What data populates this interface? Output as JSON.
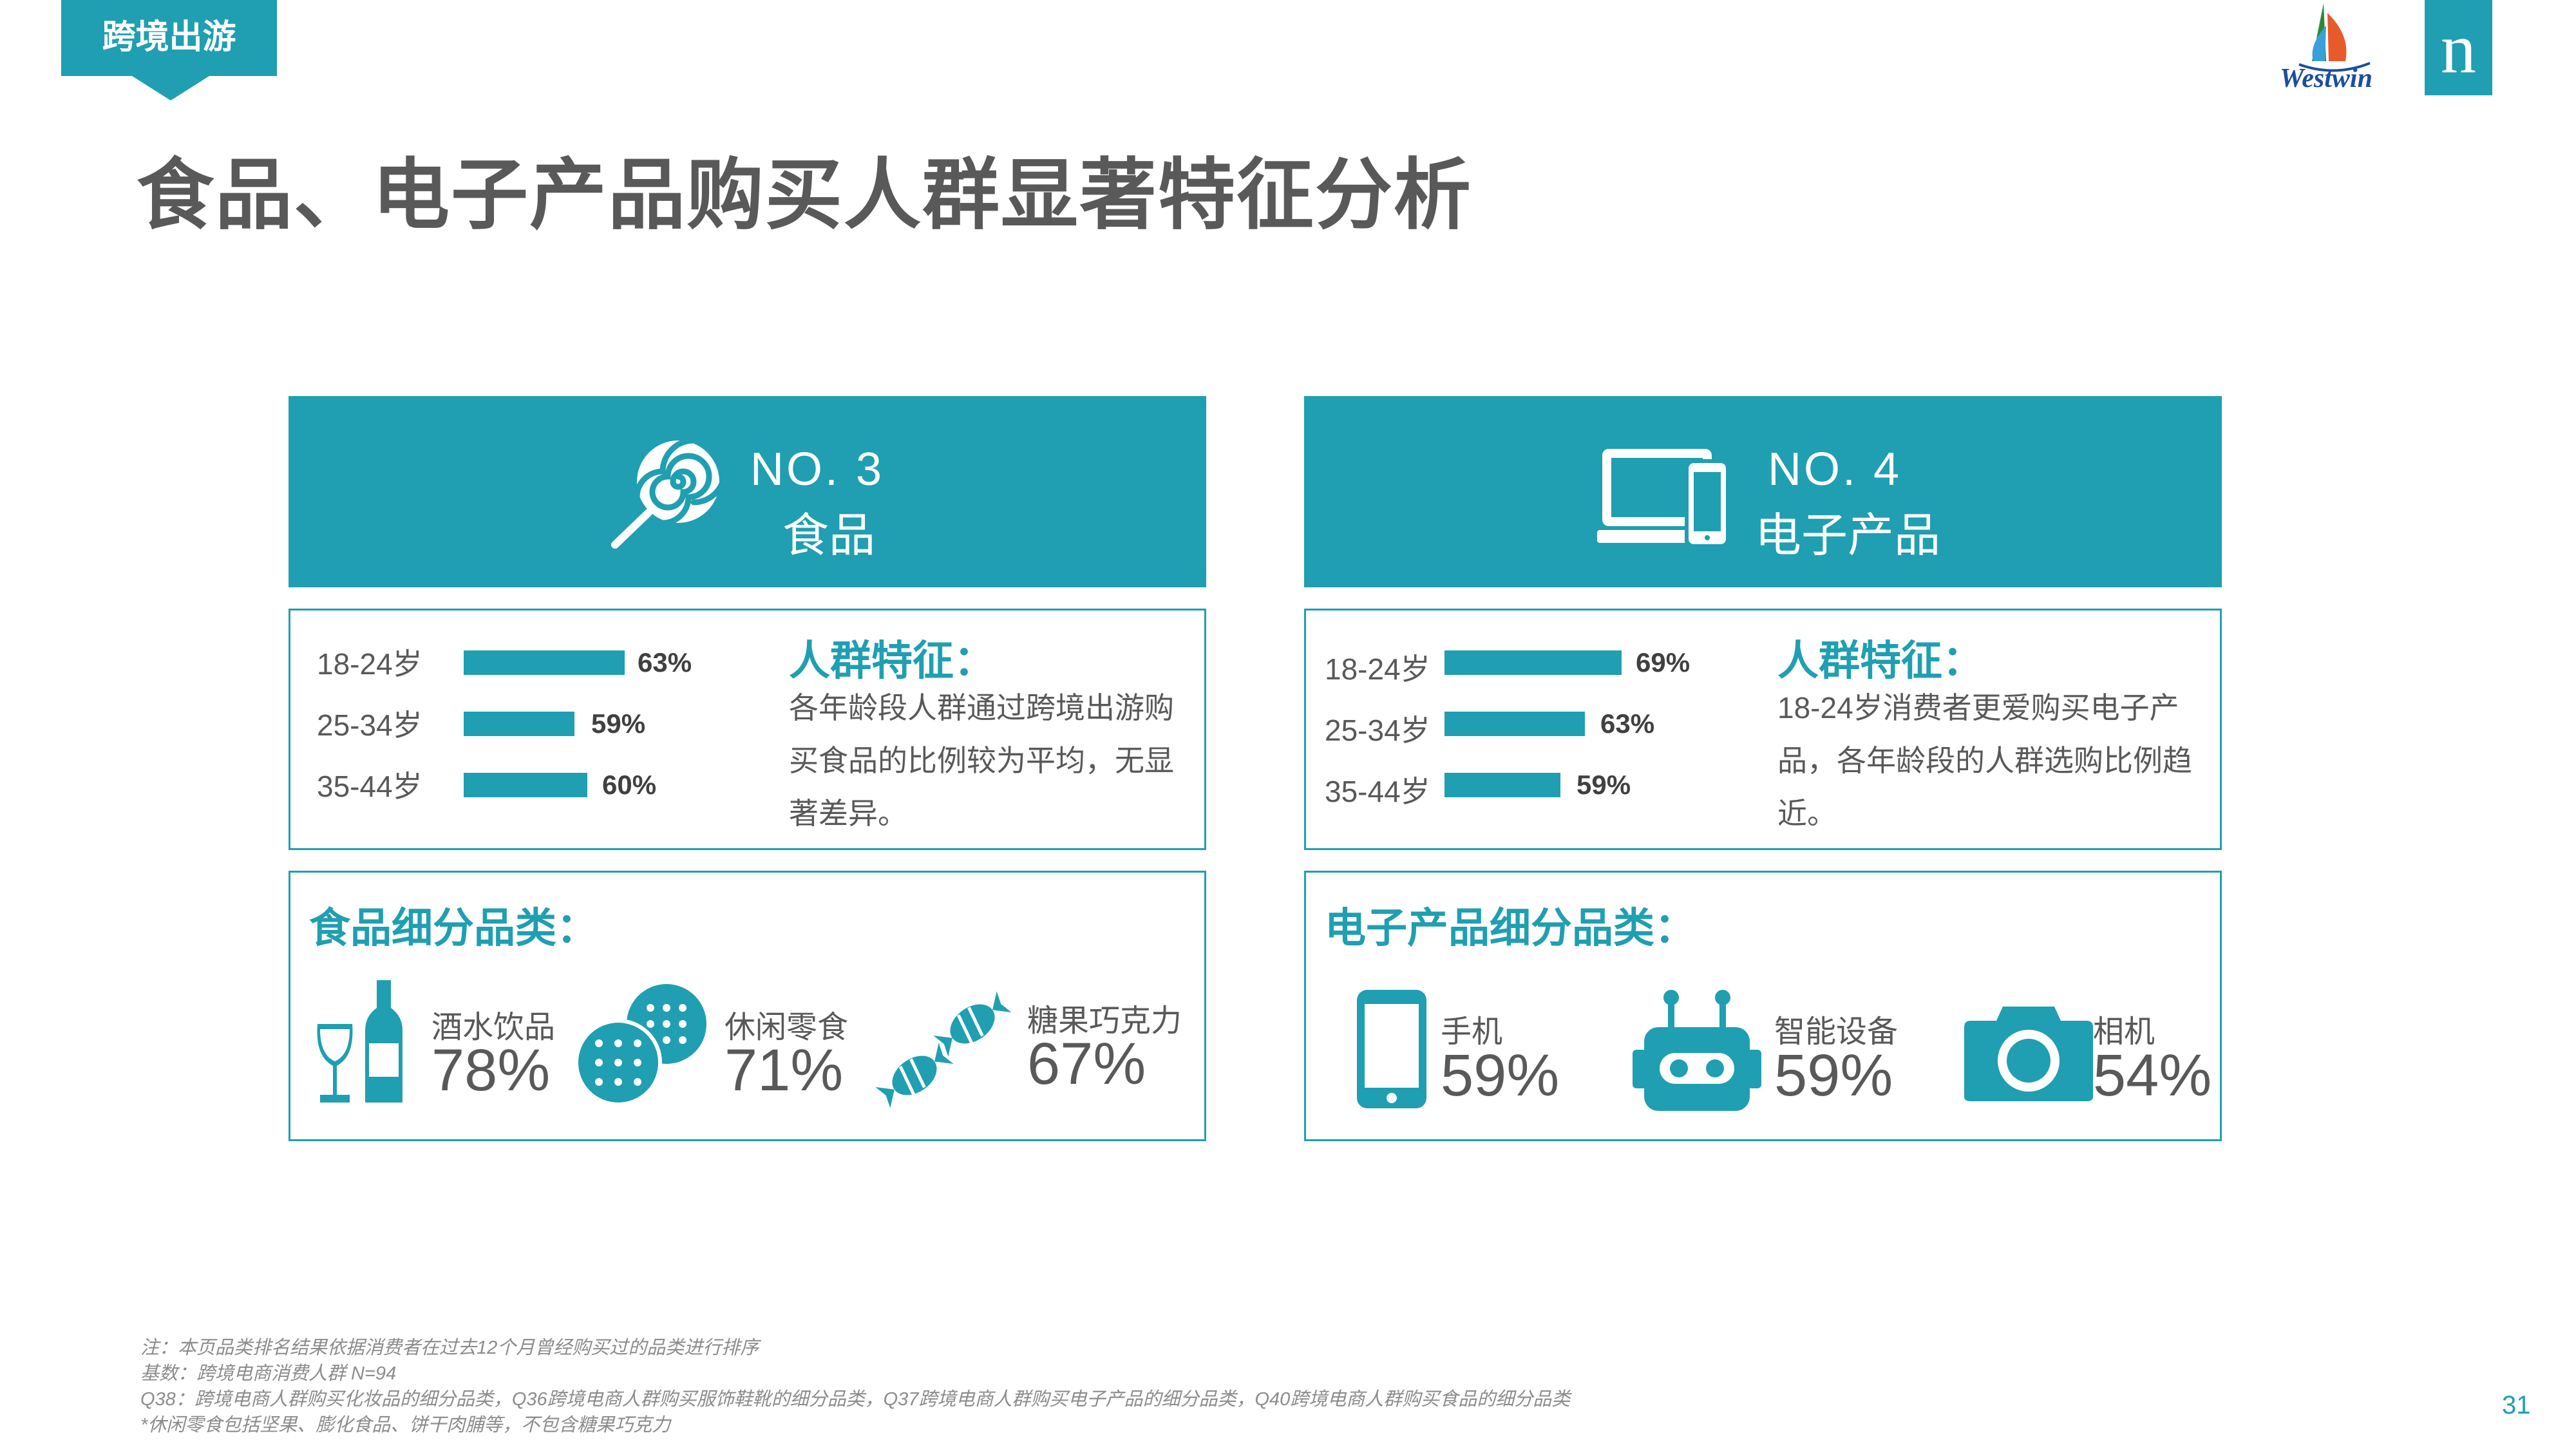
{
  "section_tag": "跨境出游",
  "title": "食品、电子产品购买人群显著特征分析",
  "logos": {
    "westwin": "Westwin",
    "nielsen": "n"
  },
  "left": {
    "rank": "NO. 3",
    "category": "食品",
    "icon": "lollipop-icon",
    "ages": [
      {
        "label": "18-24岁",
        "value": "63%"
      },
      {
        "label": "25-34岁",
        "value": "59%"
      },
      {
        "label": "35-44岁",
        "value": "60%"
      }
    ],
    "feature_title": "人群特征：",
    "feature_text": "各年龄段人群通过跨境出游购买食品的比例较为平均，无显著差异。",
    "sub_title": "食品细分品类：",
    "items": [
      {
        "name": "酒水饮品",
        "value": "78%",
        "icon": "wine-bottle-icon"
      },
      {
        "name": "休闲零食",
        "value": "71%",
        "icon": "cookies-icon"
      },
      {
        "name": "糖果巧克力",
        "value": "67%",
        "icon": "candy-icon"
      }
    ]
  },
  "right": {
    "rank": "NO. 4",
    "category": "电子产品",
    "icon": "devices-icon",
    "ages": [
      {
        "label": "18-24岁",
        "value": "69%"
      },
      {
        "label": "25-34岁",
        "value": "63%"
      },
      {
        "label": "35-44岁",
        "value": "59%"
      }
    ],
    "feature_title": "人群特征：",
    "feature_text": "18-24岁消费者更爱购买电子产品，各年龄段的人群选购比例趋近。",
    "sub_title": "电子产品细分品类：",
    "items": [
      {
        "name": "手机",
        "value": "59%",
        "icon": "phone-icon"
      },
      {
        "name": "智能设备",
        "value": "59%",
        "icon": "robot-icon"
      },
      {
        "name": "相机",
        "value": "54%",
        "icon": "camera-icon"
      }
    ]
  },
  "notes": [
    "注：本页品类排名结果依据消费者在过去12个月曾经购买过的品类进行排序",
    "基数：跨境电商消费人群 N=94",
    "Q38：跨境电商人群购买化妆品的细分品类，Q36跨境电商人群购买服饰鞋靴的细分品类，Q37跨境电商人群购买电子产品的细分品类，Q40跨境电商人群购买食品的细分品类",
    "*休闲零食包括坚果、膨化食品、饼干肉脯等，不包含糖果巧克力"
  ],
  "page_number": "31",
  "colors": {
    "accent": "#1f9fb1",
    "text": "#595959"
  }
}
